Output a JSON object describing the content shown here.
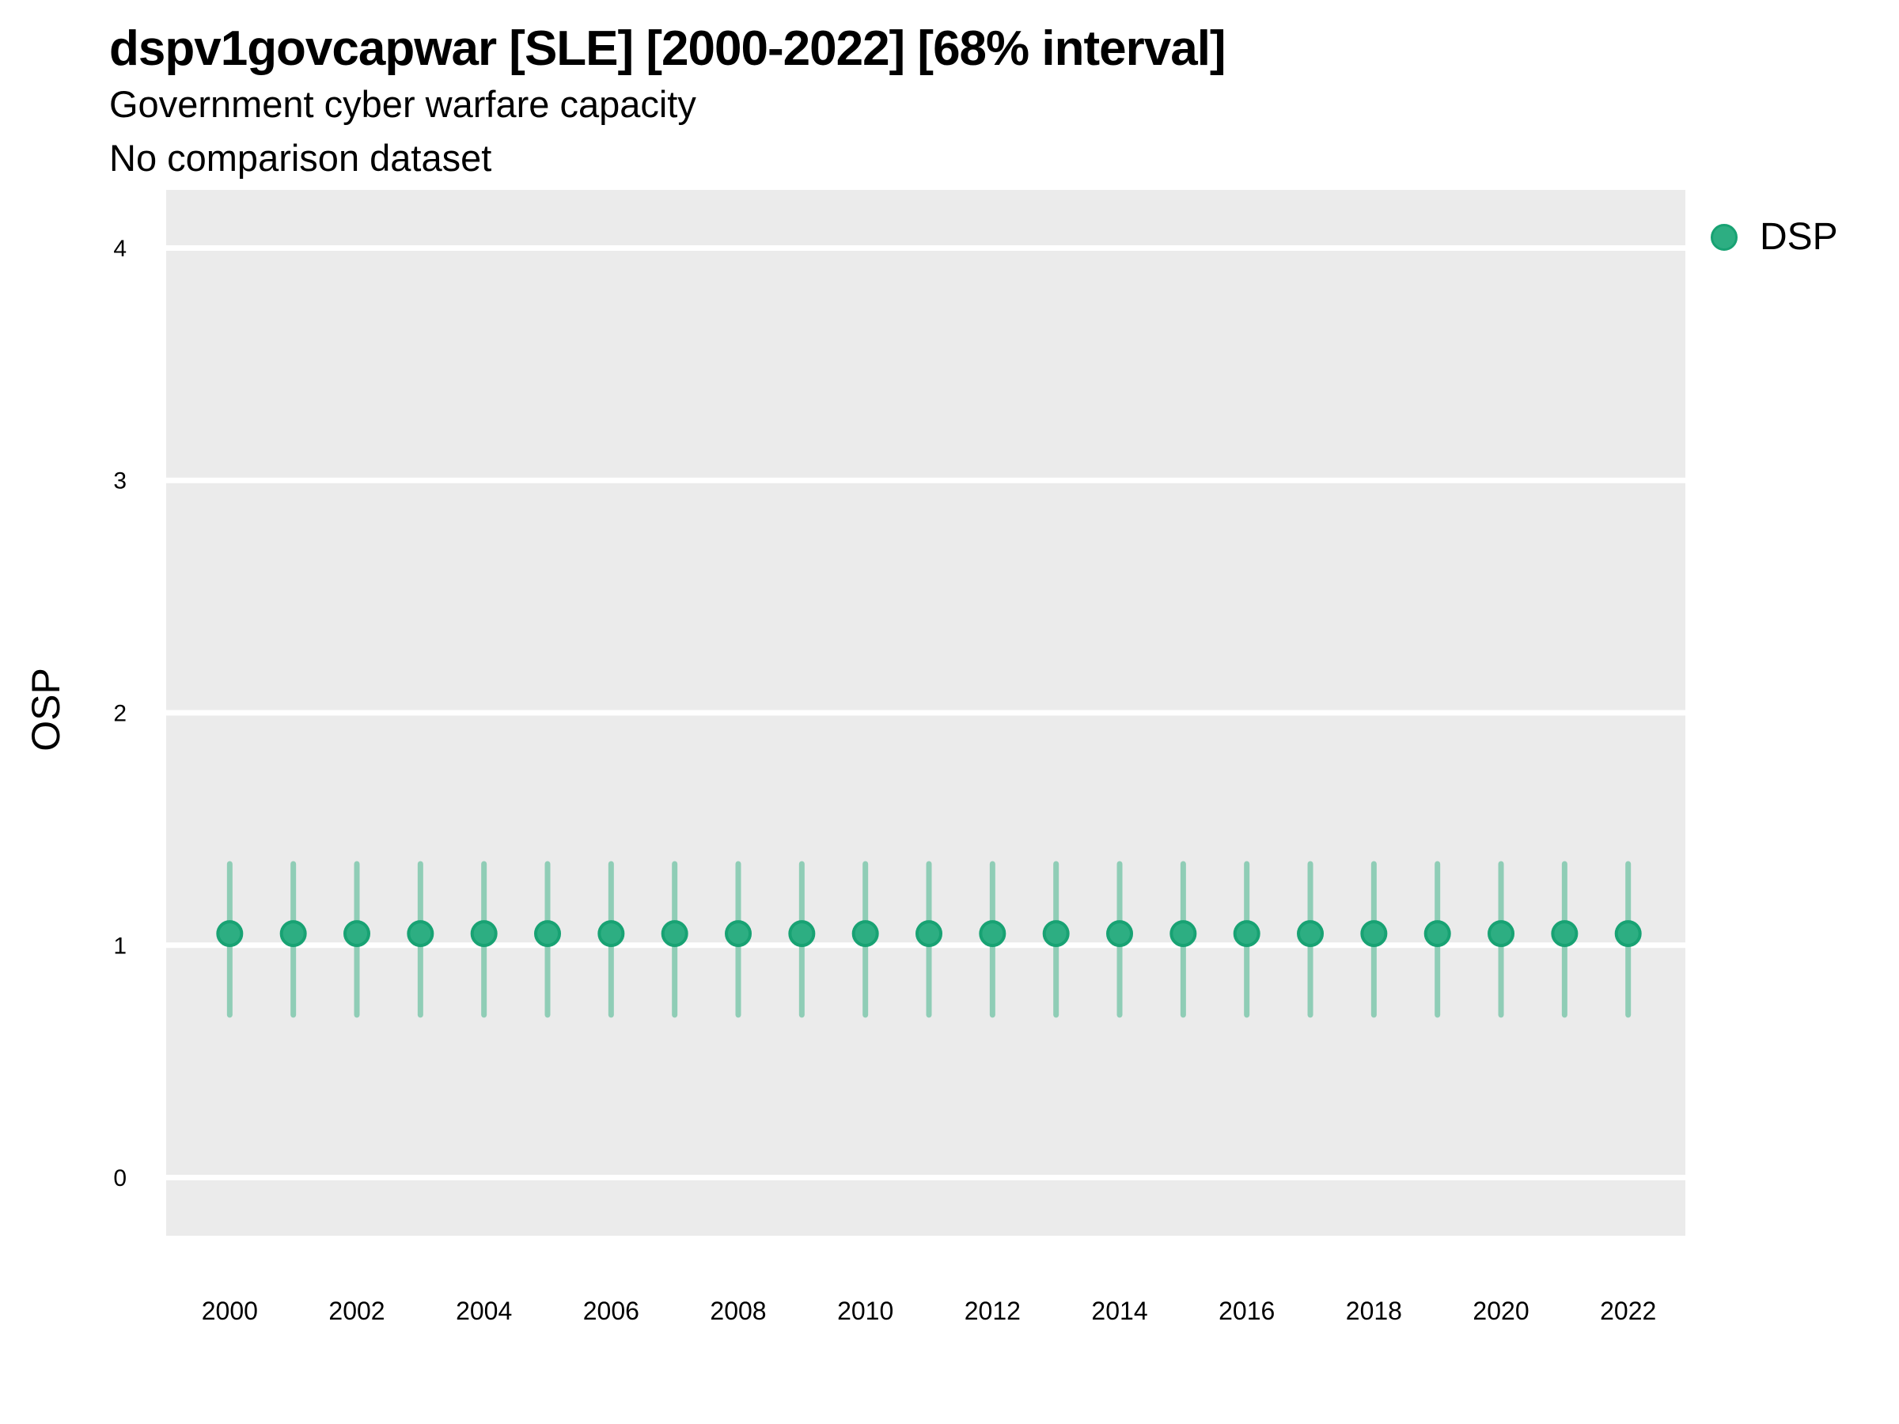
{
  "header": {
    "title": "dspv1govcapwar [SLE] [2000-2022] [68% interval]",
    "subtitle": "Government cyber warfare capacity",
    "comparison_note": "No comparison dataset"
  },
  "legend": {
    "items": [
      {
        "label": "DSP",
        "color": "#2dae82",
        "edge_color": "#18a273"
      }
    ],
    "position": "top-right"
  },
  "colors": {
    "panel_background": "#ebebeb",
    "gridline": "#ffffff",
    "text": "#000000",
    "marker_fill": "#2dae82",
    "marker_edge": "#18a273",
    "errorbar": "#8fcdb6"
  },
  "chart_data": {
    "type": "scatter",
    "title": "dspv1govcapwar [SLE] [2000-2022] [68% interval]",
    "subtitle": "Government cyber warfare capacity",
    "note": "No comparison dataset",
    "interval": "68%",
    "xlabel": "",
    "ylabel": "OSP",
    "xlim": [
      1999.0,
      2022.9
    ],
    "ylim": [
      -0.25,
      4.25
    ],
    "x_ticks": [
      2000,
      2002,
      2004,
      2006,
      2008,
      2010,
      2012,
      2014,
      2016,
      2018,
      2020,
      2022
    ],
    "y_ticks": [
      0,
      1,
      2,
      3,
      4
    ],
    "grid": "horizontal-major-only",
    "legend_position": "right",
    "series": [
      {
        "name": "DSP",
        "x": [
          2000,
          2001,
          2002,
          2003,
          2004,
          2005,
          2006,
          2007,
          2008,
          2009,
          2010,
          2011,
          2012,
          2013,
          2014,
          2015,
          2016,
          2017,
          2018,
          2019,
          2020,
          2021,
          2022
        ],
        "y": [
          1.05,
          1.05,
          1.05,
          1.05,
          1.05,
          1.05,
          1.05,
          1.05,
          1.05,
          1.05,
          1.05,
          1.05,
          1.05,
          1.05,
          1.05,
          1.05,
          1.05,
          1.05,
          1.05,
          1.05,
          1.05,
          1.05,
          1.05
        ],
        "y_low": [
          0.7,
          0.7,
          0.7,
          0.7,
          0.7,
          0.7,
          0.7,
          0.7,
          0.7,
          0.7,
          0.7,
          0.7,
          0.7,
          0.7,
          0.7,
          0.7,
          0.7,
          0.7,
          0.7,
          0.7,
          0.7,
          0.7,
          0.7
        ],
        "y_high": [
          1.35,
          1.35,
          1.35,
          1.35,
          1.35,
          1.35,
          1.35,
          1.35,
          1.35,
          1.35,
          1.35,
          1.35,
          1.35,
          1.35,
          1.35,
          1.35,
          1.35,
          1.35,
          1.35,
          1.35,
          1.35,
          1.35,
          1.35
        ]
      }
    ]
  }
}
